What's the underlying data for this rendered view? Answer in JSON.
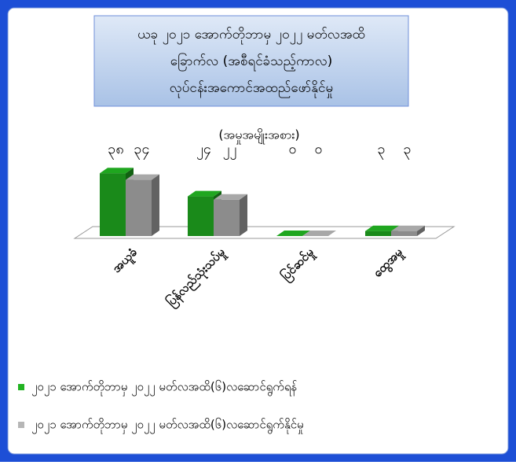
{
  "chart_data": {
    "type": "bar3d",
    "title": [
      "ယခု ၂၀၂၁ အောက်တိုဘာမှ ၂၀၂၂ မတ်လအထိ",
      "ခြောက်လ (အစီရင်ခံသည့်ကာလ)",
      "လုပ်ငန်းအကောင်အထည်ဖော်နိုင်မှု"
    ],
    "subtitle": "(အမှုအမျိုးအစား)",
    "categories": [
      "အယူခံ",
      "ပြန်လည်သုံးသပ်မှု",
      "ပြင်ဆင်မှု",
      "ထွေအမှု"
    ],
    "series": [
      {
        "name": "၂၀၂၁ အောက်တိုဘာမှ ၂၀၂၂ မတ်လအထိ(၆)လဆောင်ရွက်ရန်",
        "color": "#1a8a1a",
        "values": [
          38,
          24,
          0,
          3
        ],
        "value_labels": [
          "၃၈",
          "၂၄",
          "၀",
          "၃"
        ]
      },
      {
        "name": "၂၀၂၁ အောက်တိုဘာမှ ၂၀၂၂ မတ်လအထိ(၆)လဆောင်ရွက်နိုင်မှု",
        "color": "#8c8c8c",
        "values": [
          34,
          22,
          0,
          3
        ],
        "value_labels": [
          "၃၄",
          "၂၂",
          "၀",
          "၃"
        ]
      }
    ]
  }
}
